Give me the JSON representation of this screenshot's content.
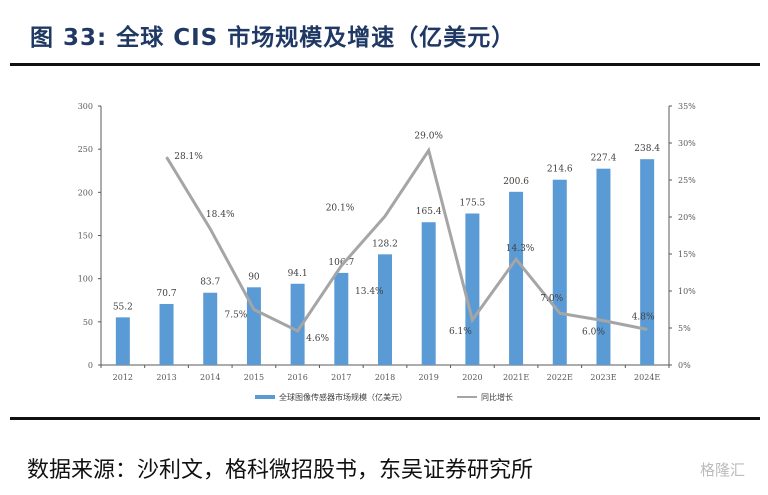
{
  "header": {
    "title": "图 33:  全球 CIS 市场规模及增速（亿美元）"
  },
  "footer": {
    "source": "数据来源：沙利文，格科微招股书，东吴证券研究所",
    "watermark": "格隆汇"
  },
  "colors": {
    "bar": "#5b9bd5",
    "line": "#a5a5a5",
    "title": "#1f3864"
  },
  "chart_data": {
    "type": "bar+line",
    "categories": [
      "2012",
      "2013",
      "2014",
      "2015",
      "2016",
      "2017",
      "2018",
      "2019",
      "2020",
      "2021E",
      "2022E",
      "2023E",
      "2024E"
    ],
    "series": [
      {
        "name": "全球图像传感器市场规模（亿美元）",
        "type": "bar",
        "axis": "left",
        "values": [
          55.2,
          70.7,
          83.7,
          90,
          94.1,
          106.7,
          128.2,
          165.4,
          175.5,
          200.6,
          214.6,
          227.4,
          238.4
        ],
        "labels": [
          "55.2",
          "70.7",
          "83.7",
          "90",
          "94.1",
          "106.7",
          "128.2",
          "165.4",
          "175.5",
          "200.6",
          "214.6",
          "227.4",
          "238.4"
        ]
      },
      {
        "name": "同比增长",
        "type": "line",
        "axis": "right",
        "values": [
          null,
          28.1,
          18.4,
          7.5,
          4.6,
          13.4,
          20.1,
          29.0,
          6.1,
          14.3,
          7.0,
          6.0,
          4.8
        ],
        "labels": [
          "",
          "28.1%",
          "18.4%",
          "7.5%",
          "4.6%",
          "13.4%",
          "20.1%",
          "29.0%",
          "6.1%",
          "14.3%",
          "7.0%",
          "6.0%",
          "4.8%"
        ]
      }
    ],
    "left_axis": {
      "ylim": [
        0,
        300
      ],
      "ticks": [
        "0",
        "50",
        "100",
        "150",
        "200",
        "250",
        "300"
      ]
    },
    "right_axis": {
      "ylim": [
        0,
        35
      ],
      "ticks": [
        "0%",
        "5%",
        "10%",
        "15%",
        "20%",
        "25%",
        "30%",
        "35%"
      ]
    },
    "legend": "bottom-center",
    "grid": false
  }
}
